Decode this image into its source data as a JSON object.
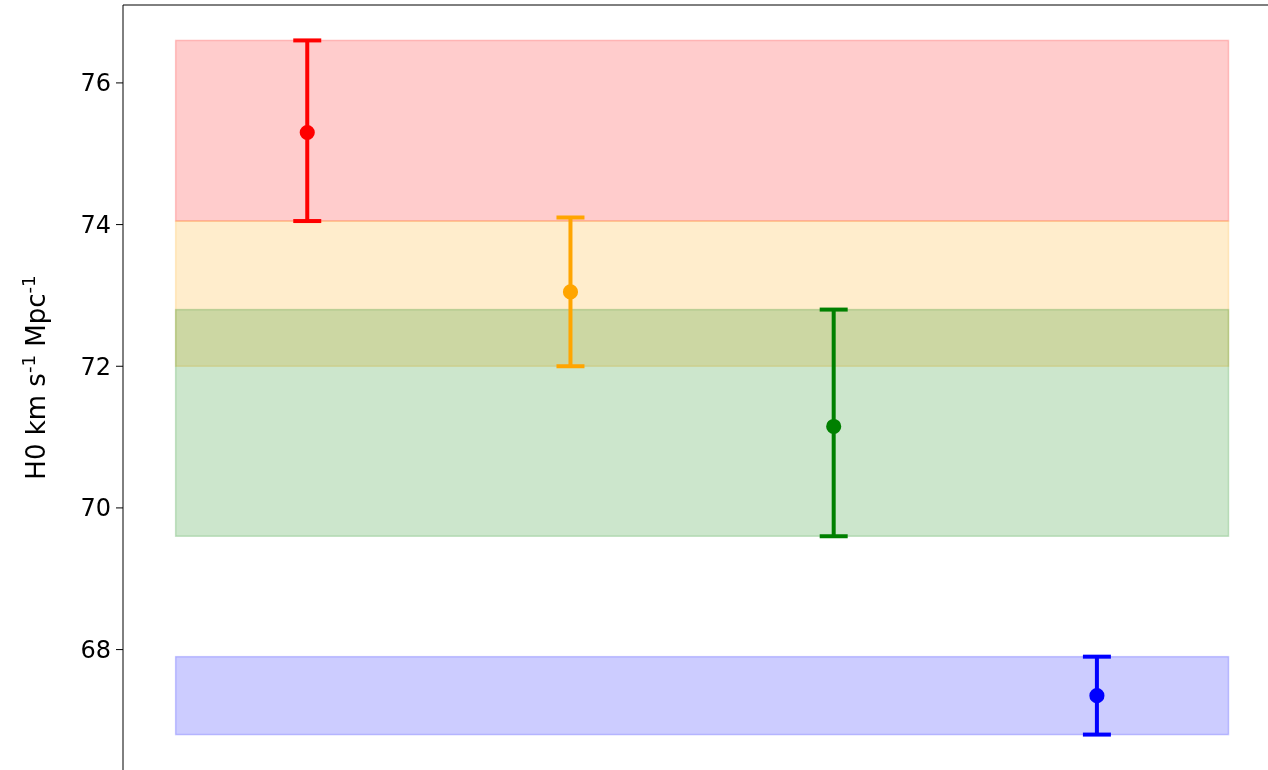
{
  "chart_data": {
    "type": "scatter",
    "ylabel": "H0 km s$^{-1}$ Mpc$^{-1}$",
    "categories": [
      null,
      null,
      null,
      null
    ],
    "series": [
      {
        "values": [
          75.3,
          73.05,
          71.15,
          67.35
        ],
        "colors": [
          "#ff0000",
          "#ffa500",
          "#008000",
          "#0000ff"
        ],
        "errors": [
          [
            74.05,
            76.6
          ],
          [
            72.0,
            74.1
          ],
          [
            69.6,
            72.8
          ],
          [
            66.8,
            67.9
          ]
        ]
      }
    ],
    "bands": [
      {
        "axis": "y",
        "from": 74.05,
        "to": 76.6,
        "color": "#ff0000"
      },
      {
        "axis": "y",
        "from": 72.0,
        "to": 74.05,
        "color": "#ffa500"
      },
      {
        "axis": "y",
        "from": 69.6,
        "to": 72.8,
        "color": "#008000"
      },
      {
        "axis": "y",
        "from": 66.8,
        "to": 67.9,
        "color": "#0000ff"
      }
    ],
    "ylim": [
      66.3,
      77.1
    ],
    "yticks": [
      68,
      70,
      72,
      74,
      76
    ],
    "marker": "circle",
    "grid": false
  }
}
